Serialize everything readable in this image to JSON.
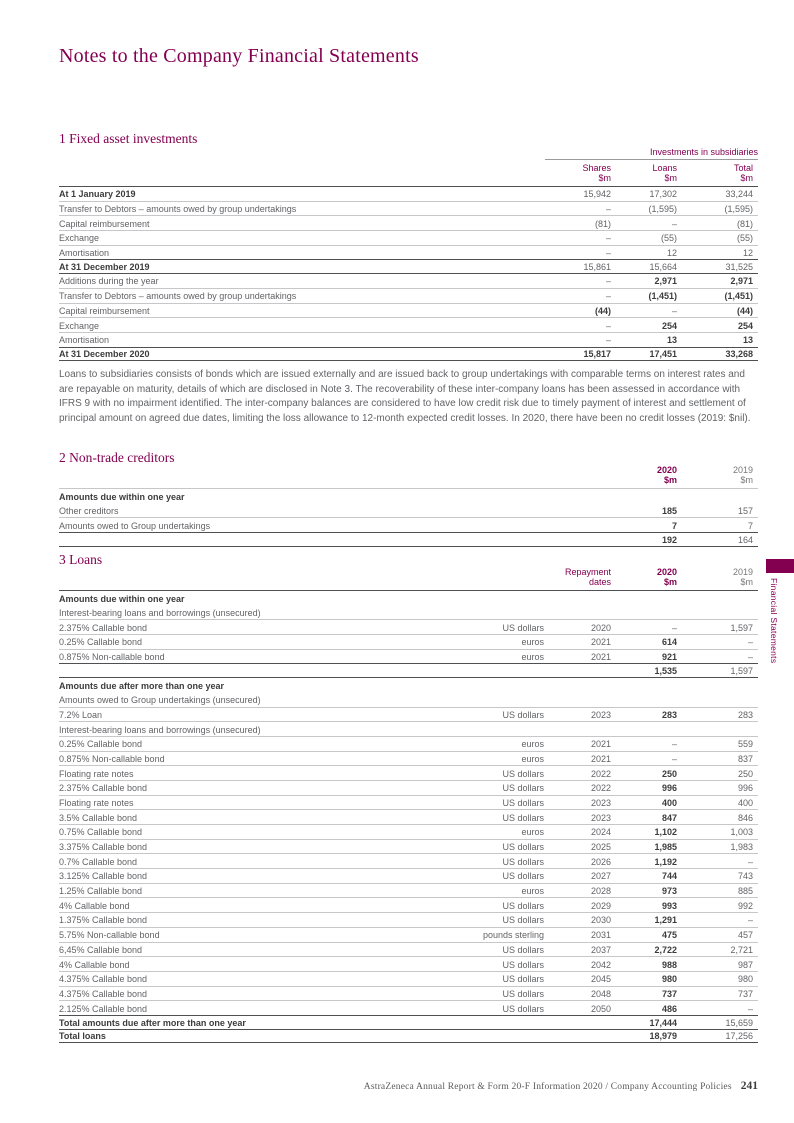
{
  "colors": {
    "mulberry": "#830051",
    "text_gray": "#626366",
    "bold_dark": "#3c3c3e",
    "rule_light": "#c6c7c9",
    "rule_heavy": "#4f5052"
  },
  "page": {
    "title": "Notes to the Company Financial Statements",
    "side_tab": "Financial Statements",
    "footer_text": "AstraZeneca Annual Report & Form 20-F Information 2020 / Company Accounting Policies",
    "footer_page": "241"
  },
  "section1": {
    "heading": "1 Fixed asset investments",
    "table": {
      "group_header": "Investments in subsidiaries",
      "col_headers": [
        {
          "line1": "Shares",
          "line2": "$m"
        },
        {
          "line1": "Loans",
          "line2": "$m"
        },
        {
          "line1": "Total",
          "line2": "$m"
        }
      ],
      "rows": [
        {
          "cells": [
            "At 1 January 2019",
            "15,942",
            "17,302",
            "33,244"
          ],
          "bold": [
            0
          ]
        },
        {
          "cells": [
            "Transfer to Debtors – amounts owed by group undertakings",
            "–",
            "(1,595)",
            "(1,595)"
          ],
          "bold": []
        },
        {
          "cells": [
            "Capital reimbursement",
            "(81)",
            "–",
            "(81)"
          ],
          "bold": []
        },
        {
          "cells": [
            "Exchange",
            "–",
            "(55)",
            "(55)"
          ],
          "bold": []
        },
        {
          "cells": [
            "Amortisation",
            "–",
            "12",
            "12"
          ],
          "bold": []
        },
        {
          "cells": [
            "At 31 December 2019",
            "15,861",
            "15,664",
            "31,525"
          ],
          "bold": [
            0
          ],
          "cls": "rt rb"
        },
        {
          "cells": [
            "Additions during the year",
            "–",
            "2,971",
            "2,971"
          ],
          "bold": [
            2,
            3
          ]
        },
        {
          "cells": [
            "Transfer to Debtors – amounts owed by group undertakings",
            "–",
            "(1,451)",
            "(1,451)"
          ],
          "bold": [
            2,
            3
          ]
        },
        {
          "cells": [
            "Capital reimbursement",
            "(44)",
            "–",
            "(44)"
          ],
          "bold": [
            1,
            3
          ]
        },
        {
          "cells": [
            "Exchange",
            "–",
            "254",
            "254"
          ],
          "bold": [
            2,
            3
          ]
        },
        {
          "cells": [
            "Amortisation",
            "–",
            "13",
            "13"
          ],
          "bold": [
            2,
            3
          ]
        },
        {
          "cells": [
            "At 31 December 2020",
            "15,817",
            "17,451",
            "33,268"
          ],
          "bold": [
            0,
            1,
            2,
            3
          ],
          "cls": "rt rb"
        }
      ]
    },
    "paragraph": "Loans to subsidiaries consists of bonds which are issued externally and are issued back to group undertakings with comparable terms on interest rates and are repayable on maturity, details of which are disclosed in Note 3. The recoverability of these inter-company loans has been assessed in accordance with IFRS 9 with no impairment identified. The inter-company balances are considered to have low credit risk due to timely payment of interest and settlement of principal amount on agreed due dates, limiting the loss allowance to 12-month expected credit losses. In 2020, there have been no credit losses (2019: $nil)."
  },
  "section2": {
    "heading": "2 Non-trade creditors",
    "table": {
      "col_headers": [
        {
          "line1": "2020",
          "line2": "$m"
        },
        {
          "line1": "2019",
          "line2": "$m"
        }
      ],
      "rows": [
        {
          "cells": [
            "Amounts due within one year",
            "",
            ""
          ],
          "bold": [
            0
          ],
          "cls": "nb"
        },
        {
          "cells": [
            "Other creditors",
            "185",
            "157"
          ],
          "bold": [
            1
          ]
        },
        {
          "cells": [
            "Amounts owed to Group undertakings",
            "7",
            "7"
          ],
          "bold": [
            1
          ]
        },
        {
          "cells": [
            "",
            "192",
            "164"
          ],
          "bold": [
            1
          ],
          "cls": "rt rb"
        }
      ]
    }
  },
  "section3": {
    "heading": "3 Loans",
    "table": {
      "col_headers": [
        {
          "line1": "Repayment",
          "line2": "dates"
        },
        {
          "line1": "2020",
          "line2": "$m"
        },
        {
          "line1": "2019",
          "line2": "$m"
        }
      ],
      "rows": [
        {
          "cells": [
            "Amounts due within one year",
            "",
            "",
            "",
            ""
          ],
          "bold": [
            0
          ],
          "cls": "nb"
        },
        {
          "cells": [
            "Interest-bearing loans and borrowings (unsecured)",
            "",
            "",
            "",
            ""
          ],
          "bold": []
        },
        {
          "cells": [
            "2.375% Callable bond",
            "US dollars",
            "2020",
            "–",
            "1,597"
          ],
          "bold": []
        },
        {
          "cells": [
            "0.25% Callable bond",
            "euros",
            "2021",
            "614",
            "–"
          ],
          "bold": [
            3
          ]
        },
        {
          "cells": [
            "0.875% Non-callable bond",
            "euros",
            "2021",
            "921",
            "–"
          ],
          "bold": [
            3
          ]
        },
        {
          "cells": [
            "",
            "",
            "",
            "1,535",
            "1,597"
          ],
          "bold": [
            3
          ],
          "cls": "rt rb"
        },
        {
          "cells": [
            "Amounts due after more than one year",
            "",
            "",
            "",
            ""
          ],
          "bold": [
            0
          ],
          "cls": "nb"
        },
        {
          "cells": [
            "Amounts owed to Group undertakings (unsecured)",
            "",
            "",
            "",
            ""
          ],
          "bold": []
        },
        {
          "cells": [
            "7.2% Loan",
            "US dollars",
            "2023",
            "283",
            "283"
          ],
          "bold": [
            3
          ]
        },
        {
          "cells": [
            "Interest-bearing loans and borrowings (unsecured)",
            "",
            "",
            "",
            ""
          ],
          "bold": []
        },
        {
          "cells": [
            "0.25% Callable bond",
            "euros",
            "2021",
            "–",
            "559"
          ],
          "bold": []
        },
        {
          "cells": [
            "0.875% Non-callable bond",
            "euros",
            "2021",
            "–",
            "837"
          ],
          "bold": []
        },
        {
          "cells": [
            "Floating rate notes",
            "US dollars",
            "2022",
            "250",
            "250"
          ],
          "bold": [
            3
          ]
        },
        {
          "cells": [
            "2.375% Callable bond",
            "US dollars",
            "2022",
            "996",
            "996"
          ],
          "bold": [
            3
          ]
        },
        {
          "cells": [
            "Floating rate notes",
            "US dollars",
            "2023",
            "400",
            "400"
          ],
          "bold": [
            3
          ]
        },
        {
          "cells": [
            "3.5% Callable bond",
            "US dollars",
            "2023",
            "847",
            "846"
          ],
          "bold": [
            3
          ]
        },
        {
          "cells": [
            "0.75% Callable bond",
            "euros",
            "2024",
            "1,102",
            "1,003"
          ],
          "bold": [
            3
          ]
        },
        {
          "cells": [
            "3.375% Callable bond",
            "US dollars",
            "2025",
            "1,985",
            "1,983"
          ],
          "bold": [
            3
          ]
        },
        {
          "cells": [
            "0.7% Callable bond",
            "US dollars",
            "2026",
            "1,192",
            "–"
          ],
          "bold": [
            3
          ]
        },
        {
          "cells": [
            "3.125% Callable bond",
            "US dollars",
            "2027",
            "744",
            "743"
          ],
          "bold": [
            3
          ]
        },
        {
          "cells": [
            "1.25% Callable bond",
            "euros",
            "2028",
            "973",
            "885"
          ],
          "bold": [
            3
          ]
        },
        {
          "cells": [
            "4% Callable bond",
            "US dollars",
            "2029",
            "993",
            "992"
          ],
          "bold": [
            3
          ]
        },
        {
          "cells": [
            "1.375% Callable bond",
            "US dollars",
            "2030",
            "1,291",
            "–"
          ],
          "bold": [
            3
          ]
        },
        {
          "cells": [
            "5.75% Non-callable bond",
            "pounds sterling",
            "2031",
            "475",
            "457"
          ],
          "bold": [
            3
          ]
        },
        {
          "cells": [
            "6,45% Callable bond",
            "US dollars",
            "2037",
            "2,722",
            "2,721"
          ],
          "bold": [
            3
          ]
        },
        {
          "cells": [
            "4% Callable bond",
            "US dollars",
            "2042",
            "988",
            "987"
          ],
          "bold": [
            3
          ]
        },
        {
          "cells": [
            "4.375% Callable bond",
            "US dollars",
            "2045",
            "980",
            "980"
          ],
          "bold": [
            3
          ]
        },
        {
          "cells": [
            "4.375% Callable bond",
            "US dollars",
            "2048",
            "737",
            "737"
          ],
          "bold": [
            3
          ]
        },
        {
          "cells": [
            "2.125% Callable bond",
            "US dollars",
            "2050",
            "486",
            "–"
          ],
          "bold": [
            3
          ]
        },
        {
          "cells": [
            "Total amounts due after more than one year",
            "",
            "",
            "17,444",
            "15,659"
          ],
          "bold": [
            0,
            3
          ],
          "cls": "rt"
        },
        {
          "cells": [
            "Total loans",
            "",
            "",
            "18,979",
            "17,256"
          ],
          "bold": [
            0,
            3
          ],
          "cls": "rt rb"
        }
      ]
    }
  }
}
